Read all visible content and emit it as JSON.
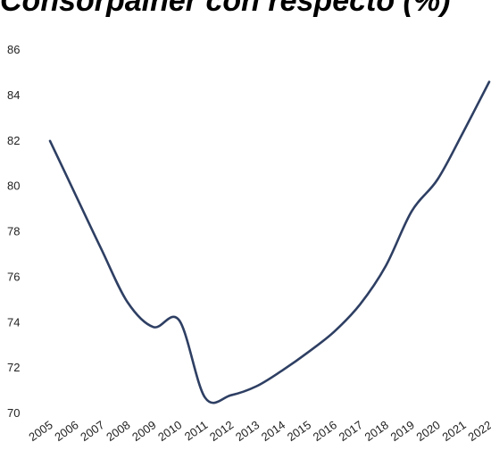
{
  "chart_data": {
    "type": "line",
    "title": "Consorpalner con respecto (%)",
    "xlabel": "",
    "ylabel": "",
    "x": [
      "2005",
      "2006",
      "2007",
      "2008",
      "2009",
      "2010",
      "2011",
      "2012",
      "2013",
      "2014",
      "2015",
      "2016",
      "2017",
      "2018",
      "2019",
      "2020",
      "2021",
      "2022"
    ],
    "series": [
      {
        "values": [
          82.0,
          79.6,
          77.2,
          74.9,
          73.8,
          74.1,
          70.7,
          70.8,
          71.2,
          71.9,
          72.7,
          73.6,
          74.8,
          76.5,
          78.9,
          80.3,
          82.4,
          84.6
        ],
        "color": "#2e3f63"
      }
    ],
    "ylim": [
      70,
      86
    ],
    "yticks": [
      70,
      72,
      74,
      76,
      78,
      80,
      82,
      84,
      86
    ],
    "grid": false,
    "legend": "none"
  }
}
